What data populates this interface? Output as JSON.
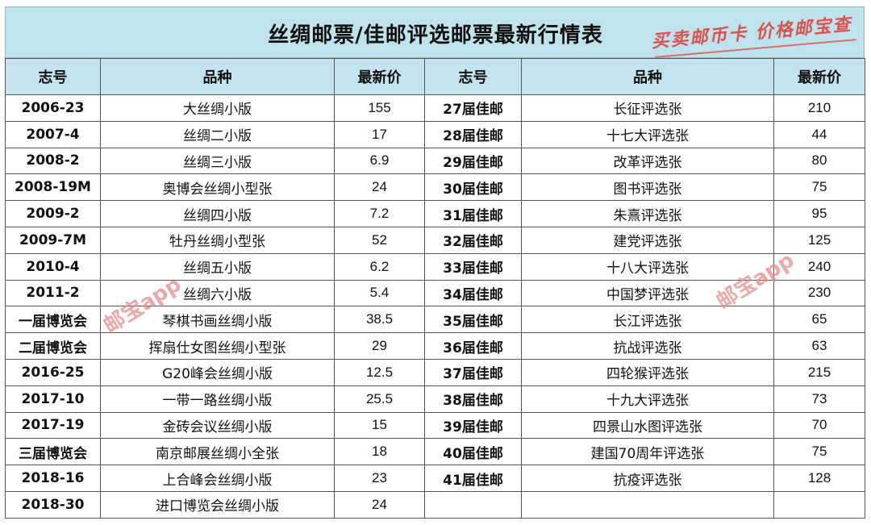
{
  "title": "丝绸邮票/佳邮评选邮票最新行情表",
  "stamp_text": "买卖邮币卡 价格邮宝查",
  "watermark_text": "邮宝app",
  "headers": [
    "志号",
    "品种",
    "最新价",
    "志号",
    "品种",
    "最新价"
  ],
  "left_rows": [
    {
      "code": "2006-23",
      "name": "大丝绸小版",
      "price": "155"
    },
    {
      "code": "2007-4",
      "name": "丝绸二小版",
      "price": "17"
    },
    {
      "code": "2008-2",
      "name": "丝绸三小版",
      "price": "6.9"
    },
    {
      "code": "2008-19M",
      "name": "奥博会丝绸小型张",
      "price": "24"
    },
    {
      "code": "2009-2",
      "name": "丝绸四小版",
      "price": "7.2"
    },
    {
      "code": "2009-7M",
      "name": "牡丹丝绸小型张",
      "price": "52"
    },
    {
      "code": "2010-4",
      "name": "丝绸五小版",
      "price": "6.2"
    },
    {
      "code": "2011-2",
      "name": "丝绸六小版",
      "price": "5.4"
    },
    {
      "code": "一届博览会",
      "name": "琴棋书画丝绸小版",
      "price": "38.5"
    },
    {
      "code": "二届博览会",
      "name": "挥扇仕女图丝绸小型张",
      "price": "29"
    },
    {
      "code": "2016-25",
      "name": "G20峰会丝绸小版",
      "price": "12.5"
    },
    {
      "code": "2017-10",
      "name": "一带一路丝绸小版",
      "price": "25.5"
    },
    {
      "code": "2017-19",
      "name": "金砖会议丝绸小版",
      "price": "15"
    },
    {
      "code": "三届博览会",
      "name": "南京邮展丝绸小全张",
      "price": "18"
    },
    {
      "code": "2018-16",
      "name": "上合峰会丝绸小版",
      "price": "23"
    },
    {
      "code": "2018-30",
      "name": "进口博览会丝绸小版",
      "price": "24"
    }
  ],
  "right_rows": [
    {
      "code": "27届佳邮",
      "name": "长征评选张",
      "price": "210"
    },
    {
      "code": "28届佳邮",
      "name": "十七大评选张",
      "price": "44"
    },
    {
      "code": "29届佳邮",
      "name": "改革评选张",
      "price": "80"
    },
    {
      "code": "30届佳邮",
      "name": "图书评选张",
      "price": "75"
    },
    {
      "code": "31届佳邮",
      "name": "朱熹评选张",
      "price": "95"
    },
    {
      "code": "32届佳邮",
      "name": "建党评选张",
      "price": "125"
    },
    {
      "code": "33届佳邮",
      "name": "十八大评选张",
      "price": "240"
    },
    {
      "code": "34届佳邮",
      "name": "中国梦评选张",
      "price": "230"
    },
    {
      "code": "35届佳邮",
      "name": "长江评选张",
      "price": "65"
    },
    {
      "code": "36届佳邮",
      "name": "抗战评选张",
      "price": "63"
    },
    {
      "code": "37届佳邮",
      "name": "四轮猴评选张",
      "price": "215"
    },
    {
      "code": "38届佳邮",
      "name": "十九大评选张",
      "price": "73"
    },
    {
      "code": "39届佳邮",
      "name": "四景山水图评选张",
      "price": "70"
    },
    {
      "code": "40届佳邮",
      "name": "建国70周年评选张",
      "price": "75"
    },
    {
      "code": "41届佳邮",
      "name": "抗疫评选张",
      "price": "128"
    },
    {
      "code": "",
      "name": "",
      "price": ""
    }
  ]
}
